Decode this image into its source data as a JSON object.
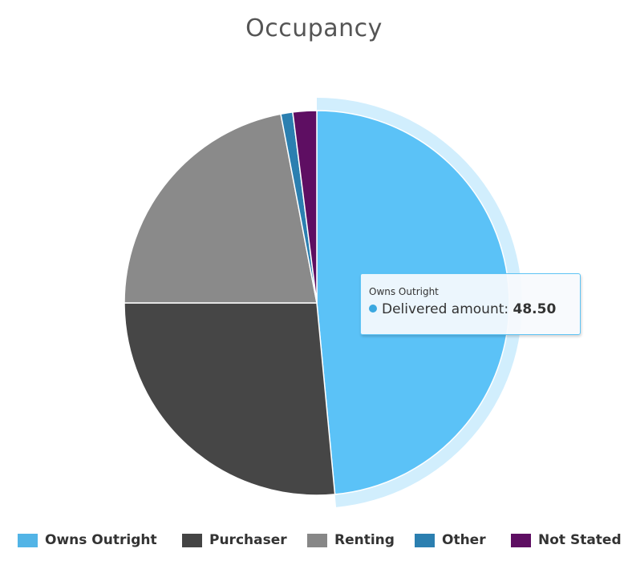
{
  "chart_data": {
    "type": "pie",
    "title": "Occupancy",
    "slices": [
      {
        "name": "Owns Outright",
        "value": 48.5,
        "color": "#5bc2f7",
        "legend_color": "#52b4e6",
        "highlighted": true
      },
      {
        "name": "Purchaser",
        "value": 26.5,
        "color": "#464646",
        "legend_color": "#444444",
        "highlighted": false
      },
      {
        "name": "Renting",
        "value": 22.0,
        "color": "#8a8a8a",
        "legend_color": "#878787",
        "highlighted": false
      },
      {
        "name": "Other",
        "value": 1.0,
        "color": "#2b7fb0",
        "legend_color": "#2b7fb0",
        "highlighted": false
      },
      {
        "name": "Not Stated",
        "value": 2.0,
        "color": "#5e0e62",
        "legend_color": "#5e0e62",
        "highlighted": false
      }
    ],
    "start_angle_deg": 0,
    "direction": "clockwise",
    "legend_position": "bottom"
  },
  "tooltip": {
    "series_name": "Owns Outright",
    "metric_label": "Delivered amount:",
    "value_text": "48.50",
    "dot_color": "#3ba8e0"
  }
}
